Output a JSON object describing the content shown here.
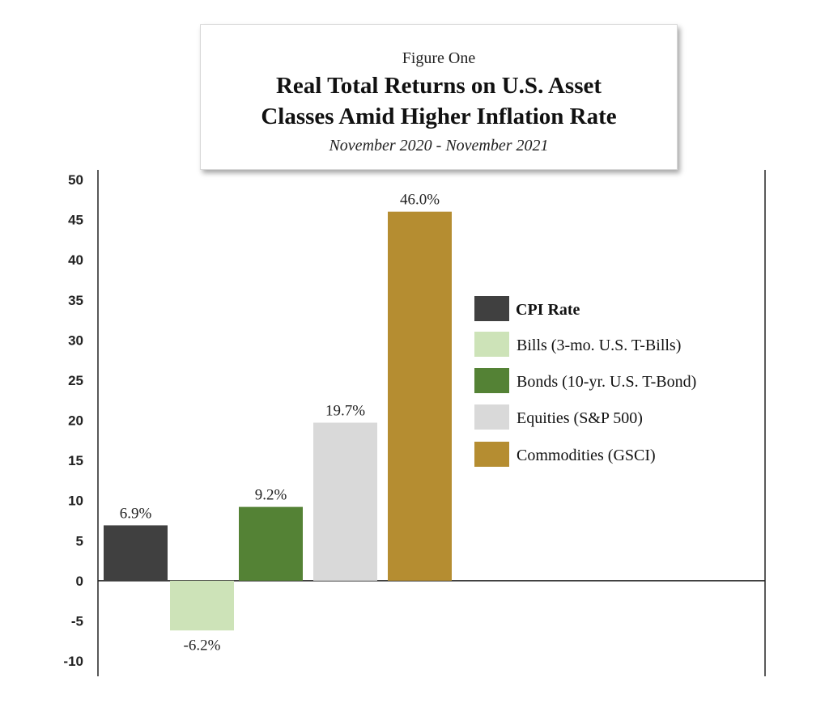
{
  "figure_label": "Figure One",
  "title_line1": "Real Total Returns on U.S. Asset",
  "title_line2": "Classes Amid Higher Inflation Rate",
  "subtitle": "November 2020 - November 2021",
  "chart_data": {
    "type": "bar",
    "title": "Real Total Returns on U.S. Asset Classes Amid Higher Inflation Rate",
    "subtitle": "November 2020 - November 2021",
    "categories": [
      "CPI Rate",
      "Bills (3-mo. U.S. T-Bills)",
      "Bonds (10-yr. U.S. T-Bond)",
      "Equities (S&P 500)",
      "Commodities (GSCI)"
    ],
    "values": [
      6.9,
      -6.2,
      9.2,
      19.7,
      46.0
    ],
    "data_labels": [
      "6.9%",
      "-6.2%",
      "9.2%",
      "19.7%",
      "46.0%"
    ],
    "colors": [
      "#404040",
      "#cde3b8",
      "#548235",
      "#d9d9d9",
      "#b58d31"
    ],
    "yticks": [
      "50",
      "45",
      "40",
      "35",
      "30",
      "25",
      "20",
      "15",
      "10",
      "5",
      "0",
      "-5",
      "-10"
    ],
    "ylim": [
      -10,
      50
    ],
    "xlabel": "",
    "ylabel": "",
    "grid": false,
    "legend": "right"
  }
}
